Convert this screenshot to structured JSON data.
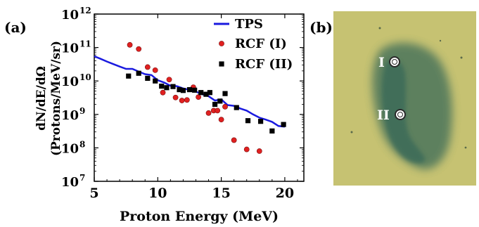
{
  "panels": {
    "a_label": "(a)",
    "b_label": "(b)"
  },
  "chart_data": {
    "type": "scatter",
    "xlabel": "Proton Energy (MeV)",
    "ylabel_line1": "dN/dE/dΩ",
    "ylabel_line2": "(Protons/MeV/sr)",
    "xlim": [
      5,
      21.5
    ],
    "ylim": [
      10000000.0,
      1000000000000.0
    ],
    "y_scale": "log",
    "x_ticks": [
      5,
      10,
      15,
      20
    ],
    "y_ticks": [
      {
        "base": "10",
        "exp": "7",
        "value": 10000000.0
      },
      {
        "base": "10",
        "exp": "8",
        "value": 100000000.0
      },
      {
        "base": "10",
        "exp": "9",
        "value": 1000000000.0
      },
      {
        "base": "10",
        "exp": "10",
        "value": 10000000000.0
      },
      {
        "base": "10",
        "exp": "11",
        "value": 100000000000.0
      },
      {
        "base": "10",
        "exp": "12",
        "value": 1000000000000.0
      }
    ],
    "legend_position": "top-right",
    "series": [
      {
        "name": "TPS",
        "kind": "line",
        "color": "#1a1adf",
        "x": [
          5,
          5.5,
          6,
          6.5,
          7,
          7.5,
          8,
          8.5,
          9,
          9.5,
          10,
          10.5,
          11,
          11.5,
          12,
          12.5,
          13,
          13.5,
          14,
          14.5,
          15,
          15.5,
          16,
          16.5,
          17,
          17.5,
          18,
          18.5,
          19,
          19.5,
          20
        ],
        "y": [
          55000000000.0,
          46000000000.0,
          38000000000.0,
          32000000000.0,
          27000000000.0,
          23000000000.0,
          23000000000.0,
          19000000000.0,
          16000000000.0,
          15000000000.0,
          10500000000.0,
          9000000000.0,
          7200000000.0,
          7000000000.0,
          6000000000.0,
          5400000000.0,
          4800000000.0,
          4000000000.0,
          3500000000.0,
          2600000000.0,
          2800000000.0,
          1900000000.0,
          1800000000.0,
          1500000000.0,
          1300000000.0,
          1000000000.0,
          800000000.0,
          700000000.0,
          600000000.0,
          450000000.0,
          430000000.0
        ]
      },
      {
        "name": "RCF (I)",
        "kind": "scatter",
        "marker": "circle",
        "color": "#e02020",
        "x": [
          7.8,
          8.5,
          9.2,
          9.8,
          10.4,
          10.9,
          11.4,
          11.9,
          12.3,
          12.8,
          13.2,
          14.0,
          14.4,
          14.7,
          15.0,
          15.3,
          16.0,
          17.0,
          18.0
        ],
        "y": [
          120000000000.0,
          90000000000.0,
          26000000000.0,
          21000000000.0,
          4500000000.0,
          11000000000.0,
          3200000000.0,
          2600000000.0,
          2700000000.0,
          6500000000.0,
          3300000000.0,
          1100000000.0,
          1300000000.0,
          1300000000.0,
          700000000.0,
          1700000000.0,
          170000000.0,
          90000000.0,
          80000000.0
        ]
      },
      {
        "name": "RCF (II)",
        "kind": "scatter",
        "marker": "square",
        "color": "#000000",
        "x": [
          7.7,
          8.5,
          9.2,
          9.8,
          10.3,
          10.7,
          11.2,
          11.7,
          12.0,
          12.5,
          12.9,
          13.4,
          13.8,
          14.1,
          14.5,
          14.9,
          15.3,
          16.2,
          17.1,
          18.1,
          19.0,
          19.9
        ],
        "y": [
          14000000000.0,
          17000000000.0,
          12000000000.0,
          10000000000.0,
          7000000000.0,
          6300000000.0,
          6800000000.0,
          5500000000.0,
          5200000000.0,
          5500000000.0,
          5300000000.0,
          4500000000.0,
          4000000000.0,
          4500000000.0,
          2000000000.0,
          2500000000.0,
          4200000000.0,
          1600000000.0,
          650000000.0,
          620000000.0,
          320000000.0,
          500000000.0
        ]
      }
    ]
  },
  "image_panel": {
    "label_I": "I",
    "label_II": "II",
    "background_color": "#c6c272",
    "stain_color": "#3b6a58"
  }
}
